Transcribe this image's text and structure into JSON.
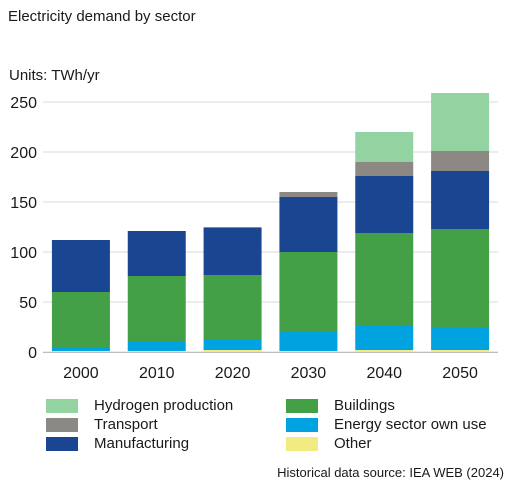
{
  "title": "Electricity demand by sector",
  "units": "Units: TWh/yr",
  "source": "Historical data source: IEA WEB (2024)",
  "chart_data": {
    "type": "bar",
    "stacked": true,
    "categories": [
      "2000",
      "2010",
      "2020",
      "2030",
      "2040",
      "2050"
    ],
    "ylim": [
      0,
      260
    ],
    "yticks": [
      0,
      50,
      100,
      150,
      200,
      250
    ],
    "grid": true,
    "legend_position": "bottom",
    "series": [
      {
        "name": "Other",
        "color": "#f2ea82",
        "values": [
          1,
          1,
          2,
          1,
          2,
          2
        ]
      },
      {
        "name": "Energy sector own use",
        "color": "#00a3e0",
        "values": [
          4,
          9,
          10,
          19,
          25,
          22
        ]
      },
      {
        "name": "Buildings",
        "color": "#43a047",
        "values": [
          55,
          66,
          65,
          80,
          92,
          99
        ]
      },
      {
        "name": "Manufacturing",
        "color": "#1a4590",
        "values": [
          52,
          45,
          47,
          55,
          57,
          58
        ]
      },
      {
        "name": "Transport",
        "color": "#8c8984",
        "values": [
          0,
          0,
          1,
          5,
          14,
          20
        ]
      },
      {
        "name": "Hydrogen production",
        "color": "#93d3a2",
        "values": [
          0,
          0,
          0,
          0,
          30,
          58
        ]
      }
    ],
    "legend_order": [
      "Hydrogen production",
      "Transport",
      "Manufacturing",
      "Buildings",
      "Energy sector own use",
      "Other"
    ]
  }
}
